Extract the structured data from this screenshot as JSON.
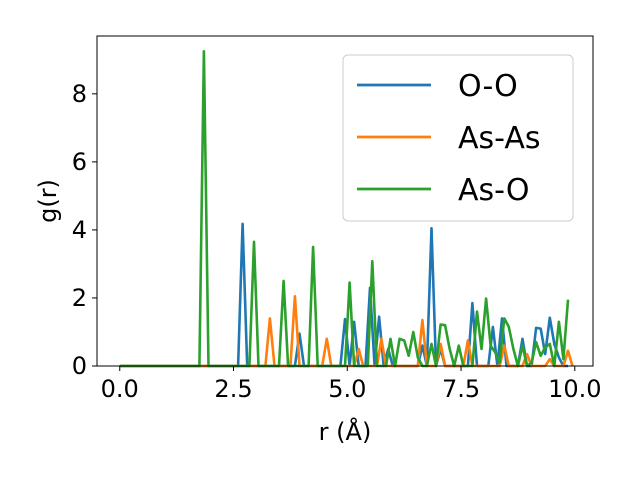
{
  "chart_data": {
    "type": "line",
    "xlabel": "r (Å)",
    "ylabel": "g(r)",
    "xlim": [
      -0.5,
      10.4
    ],
    "ylim": [
      0,
      9.7
    ],
    "xticks": [
      0.0,
      2.5,
      5.0,
      7.5,
      10.0
    ],
    "xtick_labels": [
      "0.0",
      "2.5",
      "5.0",
      "7.5",
      "10.0"
    ],
    "yticks": [
      0,
      2,
      4,
      6,
      8
    ],
    "ytick_labels": [
      "0",
      "2",
      "4",
      "6",
      "8"
    ],
    "grid": false,
    "legend_position": "upper-right",
    "series": [
      {
        "name": "O-O",
        "color": "#1f77b4",
        "points": [
          [
            0.0,
            0
          ],
          [
            2.6,
            0
          ],
          [
            2.7,
            4.18
          ],
          [
            2.8,
            0
          ],
          [
            3.85,
            0
          ],
          [
            3.95,
            0.95
          ],
          [
            4.05,
            0
          ],
          [
            4.85,
            0
          ],
          [
            4.95,
            1.38
          ],
          [
            5.05,
            0
          ],
          [
            5.15,
            1.3
          ],
          [
            5.25,
            0
          ],
          [
            5.4,
            0
          ],
          [
            5.5,
            2.3
          ],
          [
            5.6,
            0
          ],
          [
            5.7,
            1.45
          ],
          [
            5.8,
            0
          ],
          [
            5.9,
            0.5
          ],
          [
            6.0,
            0
          ],
          [
            6.55,
            0
          ],
          [
            6.65,
            0.6
          ],
          [
            6.75,
            0
          ],
          [
            6.85,
            4.05
          ],
          [
            6.95,
            0
          ],
          [
            7.05,
            0.5
          ],
          [
            7.15,
            0
          ],
          [
            7.65,
            0
          ],
          [
            7.75,
            1.85
          ],
          [
            7.85,
            0
          ],
          [
            8.1,
            0
          ],
          [
            8.2,
            1.15
          ],
          [
            8.3,
            0
          ],
          [
            8.4,
            1.4
          ],
          [
            8.5,
            0
          ],
          [
            8.75,
            0
          ],
          [
            8.85,
            0.8
          ],
          [
            8.95,
            0
          ],
          [
            9.05,
            0
          ],
          [
            9.15,
            1.12
          ],
          [
            9.25,
            1.1
          ],
          [
            9.35,
            0.35
          ],
          [
            9.45,
            1.42
          ],
          [
            9.55,
            0.65
          ],
          [
            9.65,
            0.25
          ],
          [
            9.75,
            0
          ],
          [
            9.85,
            0
          ]
        ]
      },
      {
        "name": "As-As",
        "color": "#ff7f0e",
        "points": [
          [
            0.0,
            0
          ],
          [
            3.2,
            0
          ],
          [
            3.3,
            1.4
          ],
          [
            3.4,
            0
          ],
          [
            3.75,
            0
          ],
          [
            3.85,
            2.05
          ],
          [
            3.95,
            0
          ],
          [
            4.45,
            0
          ],
          [
            4.55,
            0.8
          ],
          [
            4.65,
            0
          ],
          [
            5.15,
            0
          ],
          [
            5.25,
            0.5
          ],
          [
            5.35,
            0
          ],
          [
            5.65,
            0
          ],
          [
            5.75,
            0.8
          ],
          [
            5.85,
            0
          ],
          [
            6.55,
            0
          ],
          [
            6.65,
            1.35
          ],
          [
            6.75,
            0
          ],
          [
            6.95,
            0
          ],
          [
            7.05,
            0.65
          ],
          [
            7.15,
            0
          ],
          [
            7.55,
            0
          ],
          [
            7.65,
            0.75
          ],
          [
            7.75,
            0
          ],
          [
            8.35,
            0
          ],
          [
            8.45,
            0.6
          ],
          [
            8.55,
            0
          ],
          [
            8.85,
            0
          ],
          [
            8.95,
            0.35
          ],
          [
            9.05,
            0
          ],
          [
            9.35,
            0
          ],
          [
            9.45,
            0.2
          ],
          [
            9.55,
            0
          ],
          [
            9.75,
            0
          ],
          [
            9.85,
            0.45
          ],
          [
            9.95,
            0
          ]
        ]
      },
      {
        "name": "As-O",
        "color": "#2ca02c",
        "points": [
          [
            0.0,
            0
          ],
          [
            1.75,
            0
          ],
          [
            1.85,
            9.25
          ],
          [
            1.95,
            0
          ],
          [
            2.85,
            0
          ],
          [
            2.95,
            3.65
          ],
          [
            3.05,
            0
          ],
          [
            3.5,
            0
          ],
          [
            3.6,
            2.5
          ],
          [
            3.7,
            0
          ],
          [
            4.15,
            0
          ],
          [
            4.25,
            3.5
          ],
          [
            4.35,
            0
          ],
          [
            4.95,
            0
          ],
          [
            5.05,
            2.45
          ],
          [
            5.15,
            0
          ],
          [
            5.45,
            0
          ],
          [
            5.55,
            3.08
          ],
          [
            5.65,
            0
          ],
          [
            5.85,
            0
          ],
          [
            5.95,
            0.8
          ],
          [
            6.05,
            0
          ],
          [
            6.15,
            0.8
          ],
          [
            6.25,
            0.75
          ],
          [
            6.35,
            0.3
          ],
          [
            6.45,
            1.0
          ],
          [
            6.55,
            0.25
          ],
          [
            6.65,
            0
          ],
          [
            6.75,
            0
          ],
          [
            6.85,
            0.65
          ],
          [
            6.95,
            0
          ],
          [
            7.05,
            1.22
          ],
          [
            7.15,
            1.2
          ],
          [
            7.25,
            0.5
          ],
          [
            7.35,
            0
          ],
          [
            7.45,
            0.6
          ],
          [
            7.55,
            0
          ],
          [
            7.75,
            0
          ],
          [
            7.85,
            1.6
          ],
          [
            7.95,
            0.5
          ],
          [
            8.05,
            1.98
          ],
          [
            8.15,
            0.6
          ],
          [
            8.25,
            0.4
          ],
          [
            8.35,
            0.1
          ],
          [
            8.45,
            1.4
          ],
          [
            8.55,
            1.15
          ],
          [
            8.65,
            0.5
          ],
          [
            8.75,
            0
          ],
          [
            8.85,
            0.6
          ],
          [
            8.95,
            0
          ],
          [
            9.05,
            0.1
          ],
          [
            9.15,
            0.7
          ],
          [
            9.25,
            0.3
          ],
          [
            9.35,
            0.55
          ],
          [
            9.45,
            0.65
          ],
          [
            9.55,
            0
          ],
          [
            9.65,
            1.3
          ],
          [
            9.75,
            0.2
          ],
          [
            9.85,
            1.95
          ]
        ]
      }
    ]
  }
}
